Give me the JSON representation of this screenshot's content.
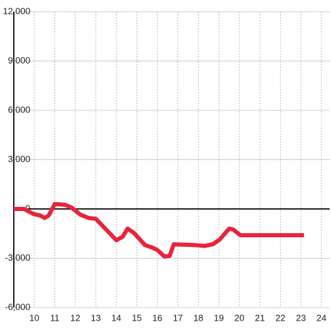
{
  "chart_data": {
    "type": "line",
    "x": [
      9,
      9.5,
      9.95,
      10.3,
      10.5,
      10.7,
      11,
      11.5,
      11.8,
      12.25,
      12.65,
      13,
      13.5,
      14,
      14.3,
      14.55,
      14.85,
      15.4,
      15.75,
      16,
      16.35,
      16.6,
      16.8,
      17.85,
      18.3,
      18.7,
      19.05,
      19.5,
      19.7,
      20.05,
      23.15
    ],
    "series": [
      {
        "color": "#e8243c",
        "values": [
          0,
          0,
          -300,
          -400,
          -550,
          -400,
          300,
          250,
          100,
          -350,
          -550,
          -600,
          -1250,
          -1900,
          -1700,
          -1200,
          -1450,
          -2200,
          -2350,
          -2500,
          -2900,
          -2850,
          -2150,
          -2200,
          -2250,
          -2150,
          -1850,
          -1200,
          -1250,
          -1600,
          -1600
        ]
      }
    ],
    "xlim": [
      9,
      24.4
    ],
    "xticks": [
      10,
      11,
      12,
      13,
      14,
      15,
      16,
      17,
      18,
      19,
      20,
      21,
      22,
      23,
      24
    ],
    "ylim": [
      -6000,
      12000
    ],
    "yticks": [
      {
        "value": 12000,
        "label": "12,000"
      },
      {
        "value": 9000,
        "label": "9,000"
      },
      {
        "value": 6000,
        "label": "6,000"
      },
      {
        "value": 3000,
        "label": "3,000"
      },
      0,
      {
        "value": -3000,
        "label": "-3,000"
      },
      {
        "value": -6000,
        "label": "-6,000"
      }
    ],
    "grid": true
  }
}
